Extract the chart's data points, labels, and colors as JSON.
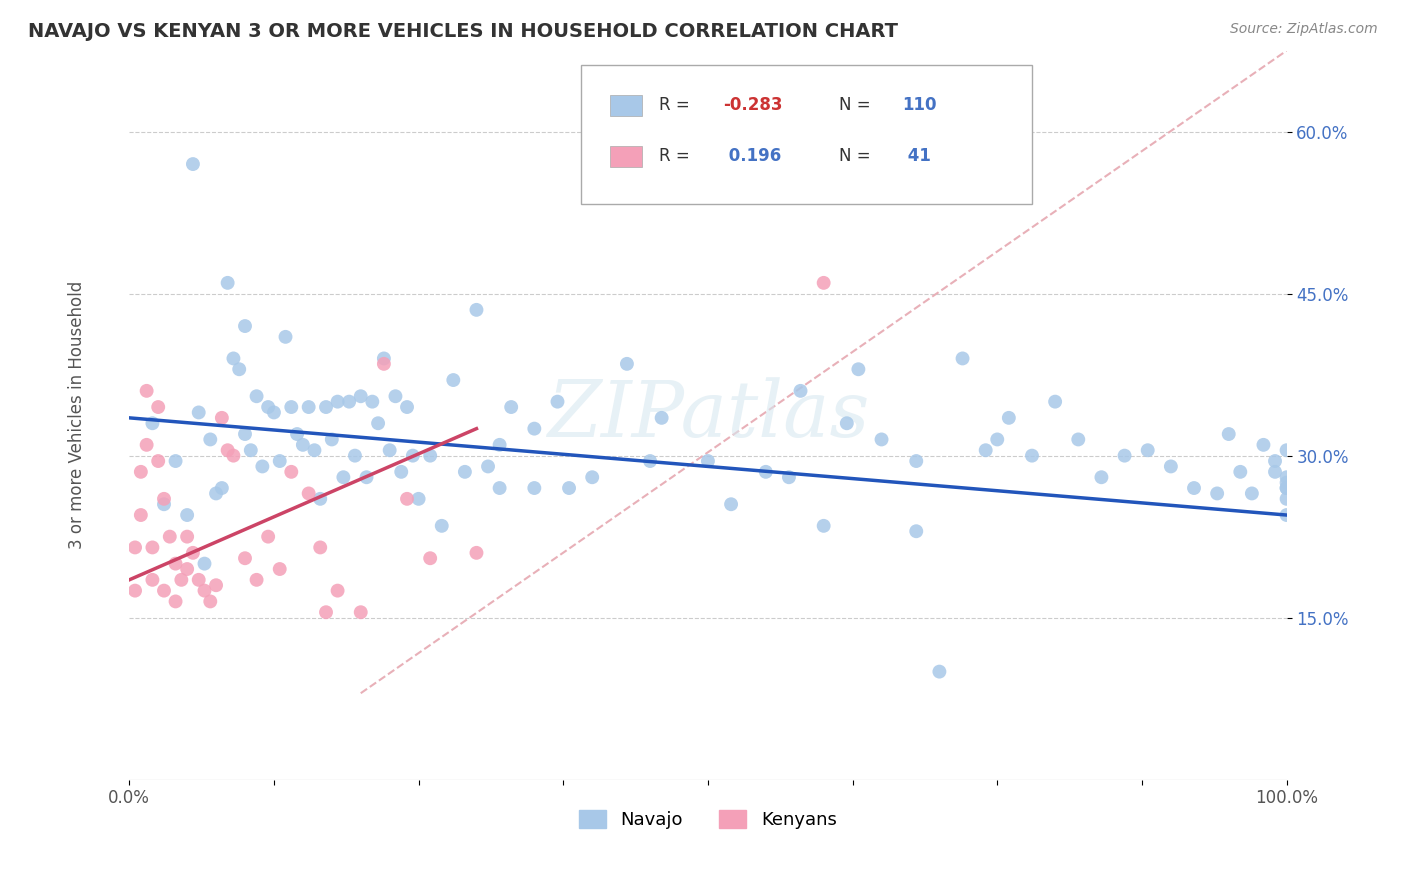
{
  "title": "NAVAJO VS KENYAN 3 OR MORE VEHICLES IN HOUSEHOLD CORRELATION CHART",
  "source": "Source: ZipAtlas.com",
  "ylabel_label": "3 or more Vehicles in Household",
  "xlim": [
    0.0,
    1.0
  ],
  "ylim": [
    0.0,
    0.675
  ],
  "xtick_positions": [
    0.0,
    0.125,
    0.25,
    0.375,
    0.5,
    0.625,
    0.75,
    0.875,
    1.0
  ],
  "xtick_labels": [
    "0.0%",
    "",
    "",
    "",
    "",
    "",
    "",
    "",
    "100.0%"
  ],
  "ytick_values": [
    0.15,
    0.3,
    0.45,
    0.6
  ],
  "ytick_labels": [
    "15.0%",
    "30.0%",
    "45.0%",
    "60.0%"
  ],
  "navajo_R": "-0.283",
  "navajo_N": "110",
  "kenyan_R": "0.196",
  "kenyan_N": "41",
  "navajo_color": "#a8c8e8",
  "kenyan_color": "#f4a0b8",
  "navajo_line_color": "#2255bb",
  "kenyan_line_color": "#cc4466",
  "ref_line_color": "#e8b0b8",
  "background_color": "#ffffff",
  "watermark": "ZIPatlas",
  "legend_navajo": "Navajo",
  "legend_kenyan": "Kenyans",
  "navajo_scatter_x": [
    0.02,
    0.03,
    0.04,
    0.05,
    0.055,
    0.06,
    0.065,
    0.07,
    0.075,
    0.08,
    0.085,
    0.09,
    0.095,
    0.1,
    0.1,
    0.105,
    0.11,
    0.115,
    0.12,
    0.125,
    0.13,
    0.135,
    0.14,
    0.145,
    0.15,
    0.155,
    0.16,
    0.165,
    0.17,
    0.175,
    0.18,
    0.185,
    0.19,
    0.195,
    0.2,
    0.205,
    0.21,
    0.215,
    0.22,
    0.225,
    0.23,
    0.235,
    0.24,
    0.245,
    0.25,
    0.26,
    0.27,
    0.28,
    0.29,
    0.3,
    0.31,
    0.32,
    0.33,
    0.35,
    0.37,
    0.4,
    0.43,
    0.5,
    0.55,
    0.58,
    0.6,
    0.63,
    0.65,
    0.68,
    0.7,
    0.72,
    0.74,
    0.76,
    0.78,
    0.8,
    0.82,
    0.84,
    0.86,
    0.88,
    0.9,
    0.92,
    0.94,
    0.95,
    0.96,
    0.97,
    0.98,
    0.99,
    0.99,
    1.0,
    1.0,
    1.0,
    1.0,
    1.0,
    1.0,
    1.0,
    0.38,
    0.35,
    0.32,
    0.45,
    0.52,
    0.46,
    0.62,
    0.75,
    0.68,
    0.57
  ],
  "navajo_scatter_y": [
    0.33,
    0.255,
    0.295,
    0.245,
    0.57,
    0.34,
    0.2,
    0.315,
    0.265,
    0.27,
    0.46,
    0.39,
    0.38,
    0.32,
    0.42,
    0.305,
    0.355,
    0.29,
    0.345,
    0.34,
    0.295,
    0.41,
    0.345,
    0.32,
    0.31,
    0.345,
    0.305,
    0.26,
    0.345,
    0.315,
    0.35,
    0.28,
    0.35,
    0.3,
    0.355,
    0.28,
    0.35,
    0.33,
    0.39,
    0.305,
    0.355,
    0.285,
    0.345,
    0.3,
    0.26,
    0.3,
    0.235,
    0.37,
    0.285,
    0.435,
    0.29,
    0.31,
    0.345,
    0.27,
    0.35,
    0.28,
    0.385,
    0.295,
    0.285,
    0.36,
    0.235,
    0.38,
    0.315,
    0.295,
    0.1,
    0.39,
    0.305,
    0.335,
    0.3,
    0.35,
    0.315,
    0.28,
    0.3,
    0.305,
    0.29,
    0.27,
    0.265,
    0.32,
    0.285,
    0.265,
    0.31,
    0.295,
    0.285,
    0.28,
    0.27,
    0.305,
    0.275,
    0.26,
    0.245,
    0.27,
    0.27,
    0.325,
    0.27,
    0.295,
    0.255,
    0.335,
    0.33,
    0.315,
    0.23,
    0.28
  ],
  "kenyan_scatter_x": [
    0.005,
    0.005,
    0.01,
    0.01,
    0.015,
    0.015,
    0.02,
    0.02,
    0.025,
    0.025,
    0.03,
    0.03,
    0.035,
    0.04,
    0.04,
    0.045,
    0.05,
    0.05,
    0.055,
    0.06,
    0.065,
    0.07,
    0.075,
    0.08,
    0.085,
    0.09,
    0.1,
    0.11,
    0.12,
    0.13,
    0.14,
    0.155,
    0.165,
    0.17,
    0.18,
    0.2,
    0.22,
    0.24,
    0.26,
    0.6,
    0.3
  ],
  "kenyan_scatter_y": [
    0.215,
    0.175,
    0.285,
    0.245,
    0.36,
    0.31,
    0.215,
    0.185,
    0.345,
    0.295,
    0.26,
    0.175,
    0.225,
    0.2,
    0.165,
    0.185,
    0.225,
    0.195,
    0.21,
    0.185,
    0.175,
    0.165,
    0.18,
    0.335,
    0.305,
    0.3,
    0.205,
    0.185,
    0.225,
    0.195,
    0.285,
    0.265,
    0.215,
    0.155,
    0.175,
    0.155,
    0.385,
    0.26,
    0.205,
    0.46,
    0.21
  ],
  "navajo_line_x0": 0.0,
  "navajo_line_x1": 1.0,
  "navajo_line_y0": 0.335,
  "navajo_line_y1": 0.245,
  "kenyan_line_x0": 0.0,
  "kenyan_line_x1": 0.3,
  "kenyan_line_y0": 0.185,
  "kenyan_line_y1": 0.325,
  "ref_line_x0": 0.2,
  "ref_line_x1": 1.0,
  "ref_line_y0": 0.08,
  "ref_line_y1": 0.675
}
